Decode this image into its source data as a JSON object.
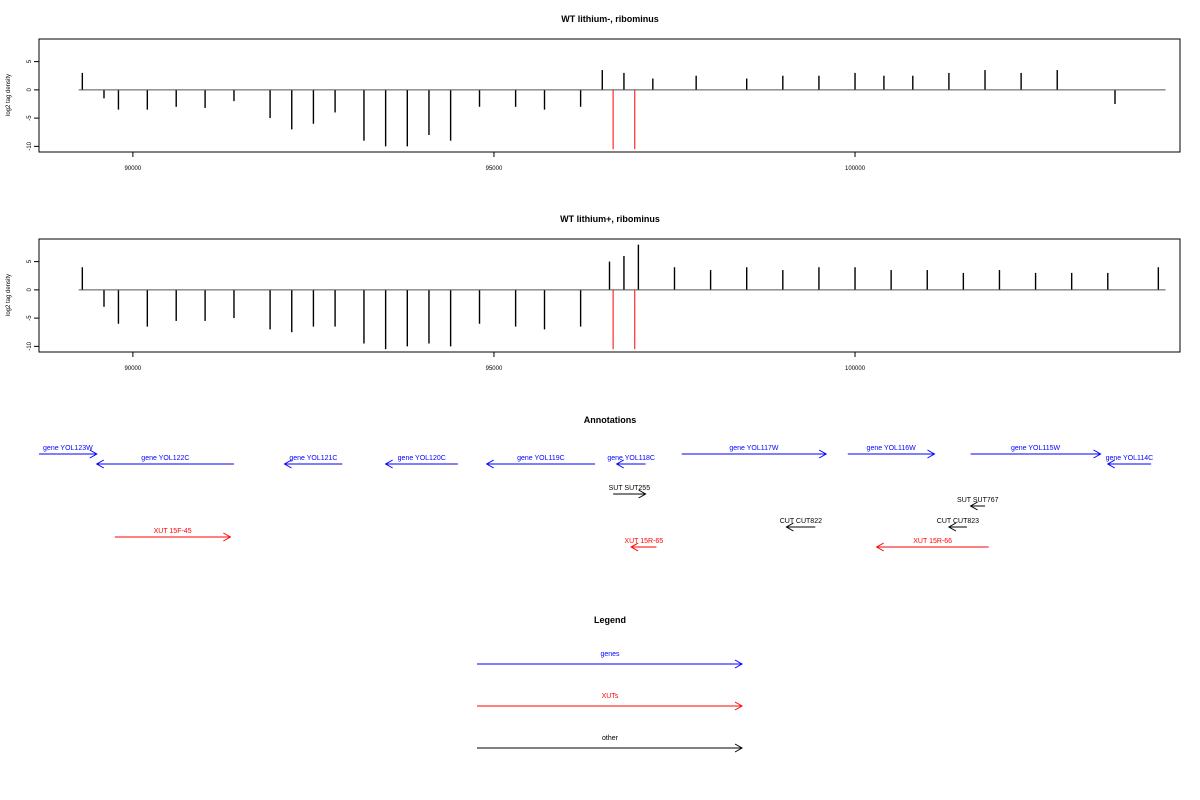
{
  "chart_data": [
    {
      "type": "bar",
      "title": "WT lithium-, ribominus",
      "ylabel": "log2 tag density",
      "xlabel": "",
      "xlim": [
        88700,
        104500
      ],
      "ylim": [
        -11,
        9
      ],
      "xticks": [
        90000,
        95000,
        100000
      ],
      "xtick_labels": [
        "90000",
        "95000",
        "100000"
      ],
      "yticks": [
        5,
        0,
        -5,
        -10
      ],
      "ytick_labels": [
        "5",
        "0",
        "-5",
        "-10"
      ],
      "baseline": 0,
      "baseline_range": [
        89250,
        104300
      ],
      "grid": false,
      "series": [
        {
          "x": [
            89300,
            89600,
            89800,
            90200,
            90600,
            91000,
            91400,
            91900,
            92200,
            92500,
            92800,
            93200,
            93500,
            93800,
            94100,
            94400,
            94800,
            95300,
            95700,
            96200,
            96500,
            96800,
            97200,
            97800,
            98500,
            99000,
            99500,
            100000,
            100400,
            100800,
            101300,
            101800,
            102300,
            102800,
            103600
          ],
          "y": [
            3.0,
            -1.5,
            -3.5,
            -3.5,
            -3.0,
            -3.2,
            -2.0,
            -5.0,
            -7.0,
            -6.0,
            -4.0,
            -9.0,
            -10.0,
            -10.0,
            -8.0,
            -9.0,
            -3.0,
            -3.0,
            -3.5,
            -3.0,
            3.5,
            3.0,
            2.0,
            2.5,
            2.0,
            2.5,
            2.5,
            3.0,
            2.5,
            2.5,
            3.0,
            3.5,
            3.0,
            3.5,
            -2.5
          ]
        }
      ],
      "markers": [
        96650,
        96950
      ]
    },
    {
      "type": "bar",
      "title": "WT lithium+, ribominus",
      "ylabel": "log2 tag density",
      "xlabel": "",
      "xlim": [
        88700,
        104500
      ],
      "ylim": [
        -11,
        9
      ],
      "xticks": [
        90000,
        95000,
        100000
      ],
      "xtick_labels": [
        "90000",
        "95000",
        "100000"
      ],
      "yticks": [
        5,
        0,
        -5,
        -10
      ],
      "ytick_labels": [
        "5",
        "0",
        "-5",
        "-10"
      ],
      "baseline": 0,
      "baseline_range": [
        89250,
        104300
      ],
      "grid": false,
      "series": [
        {
          "x": [
            89300,
            89600,
            89800,
            90200,
            90600,
            91000,
            91400,
            91900,
            92200,
            92500,
            92800,
            93200,
            93500,
            93800,
            94100,
            94400,
            94800,
            95300,
            95700,
            96200,
            96600,
            96800,
            97000,
            97500,
            98000,
            98500,
            99000,
            99500,
            100000,
            100500,
            101000,
            101500,
            102000,
            102500,
            103000,
            103500,
            104200
          ],
          "y": [
            4.0,
            -3.0,
            -6.0,
            -6.5,
            -5.5,
            -5.5,
            -5.0,
            -7.0,
            -7.5,
            -6.5,
            -6.5,
            -9.5,
            -10.5,
            -10.0,
            -9.5,
            -10.0,
            -6.0,
            -6.5,
            -7.0,
            -6.5,
            5.0,
            6.0,
            8.0,
            4.0,
            3.5,
            4.0,
            3.5,
            4.0,
            4.0,
            3.5,
            3.5,
            3.0,
            3.5,
            3.0,
            3.0,
            3.0,
            4.0
          ]
        }
      ],
      "markers": [
        96650,
        96950
      ]
    }
  ],
  "annotations": {
    "title": "Annotations",
    "colors": {
      "genes": "#0000ff",
      "xuts": "#ff0000",
      "other": "#000000"
    },
    "items": [
      {
        "label": "gene YOL123W",
        "start": 88700,
        "end": 89500,
        "strand": "+",
        "kind": "genes",
        "row": 0
      },
      {
        "label": "gene YOL122C",
        "start": 89500,
        "end": 91400,
        "strand": "-",
        "kind": "genes",
        "row": 1
      },
      {
        "label": "gene YOL121C",
        "start": 92100,
        "end": 92900,
        "strand": "-",
        "kind": "genes",
        "row": 1
      },
      {
        "label": "gene YOL120C",
        "start": 93500,
        "end": 94500,
        "strand": "-",
        "kind": "genes",
        "row": 1
      },
      {
        "label": "gene YOL119C",
        "start": 94900,
        "end": 96400,
        "strand": "-",
        "kind": "genes",
        "row": 1
      },
      {
        "label": "gene YOL118C",
        "start": 96700,
        "end": 97100,
        "strand": "-",
        "kind": "genes",
        "row": 1
      },
      {
        "label": "gene YOL117W",
        "start": 97600,
        "end": 99600,
        "strand": "+",
        "kind": "genes",
        "row": 0
      },
      {
        "label": "gene YOL116W",
        "start": 99900,
        "end": 101100,
        "strand": "+",
        "kind": "genes",
        "row": 0
      },
      {
        "label": "gene YOL115W",
        "start": 101600,
        "end": 103400,
        "strand": "+",
        "kind": "genes",
        "row": 0
      },
      {
        "label": "gene YOL114C",
        "start": 103500,
        "end": 104100,
        "strand": "-",
        "kind": "genes",
        "row": 1
      },
      {
        "label": "SUT SUT255",
        "start": 96650,
        "end": 97100,
        "strand": "+",
        "kind": "other",
        "row": 2
      },
      {
        "label": "SUT SUT767",
        "start": 101600,
        "end": 101800,
        "strand": "-",
        "kind": "other",
        "row": 3
      },
      {
        "label": "CUT CUT822",
        "start": 99050,
        "end": 99450,
        "strand": "-",
        "kind": "other",
        "row": 4
      },
      {
        "label": "CUT CUT823",
        "start": 101300,
        "end": 101550,
        "strand": "-",
        "kind": "other",
        "row": 4
      },
      {
        "label": "XUT 15F-45",
        "start": 89750,
        "end": 91350,
        "strand": "+",
        "kind": "xuts",
        "row": 5
      },
      {
        "label": "XUT 15R-65",
        "start": 96900,
        "end": 97250,
        "strand": "-",
        "kind": "xuts",
        "row": 6
      },
      {
        "label": "XUT 15R-66",
        "start": 100300,
        "end": 101850,
        "strand": "-",
        "kind": "xuts",
        "row": 6
      }
    ]
  },
  "legend": {
    "title": "Legend",
    "entries": [
      {
        "label": "genes",
        "kind": "genes"
      },
      {
        "label": "XUTs",
        "kind": "xuts"
      },
      {
        "label": "other",
        "kind": "other"
      }
    ]
  }
}
